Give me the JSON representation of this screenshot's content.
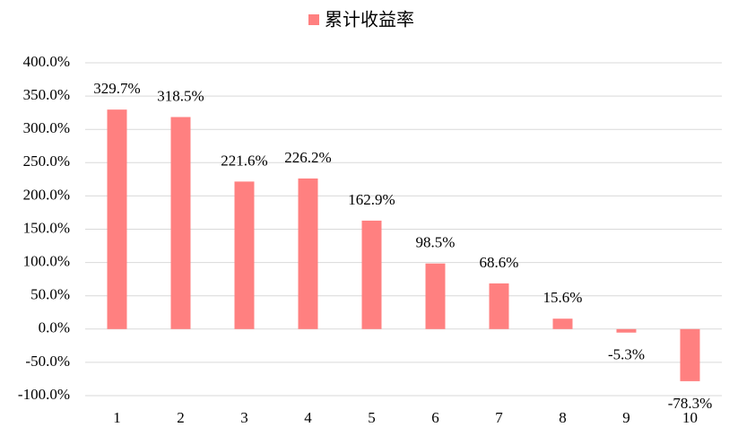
{
  "chart_data": {
    "type": "bar",
    "legend": "累计收益率",
    "categories": [
      "1",
      "2",
      "3",
      "4",
      "5",
      "6",
      "7",
      "8",
      "9",
      "10"
    ],
    "values": [
      329.7,
      318.5,
      221.6,
      226.2,
      162.9,
      98.5,
      68.6,
      15.6,
      -5.3,
      -78.3
    ],
    "value_labels": [
      "329.7%",
      "318.5%",
      "221.6%",
      "226.2%",
      "162.9%",
      "98.5%",
      "68.6%",
      "15.6%",
      "-5.3%",
      "-78.3%"
    ],
    "color": "#ff8080",
    "ylim": [
      -100,
      400
    ],
    "yticks": [
      {
        "value": -100,
        "label": "-100.0%"
      },
      {
        "value": -50,
        "label": "-50.0%"
      },
      {
        "value": 0,
        "label": "0.0%"
      },
      {
        "value": 50,
        "label": "50.0%"
      },
      {
        "value": 100,
        "label": "100.0%"
      },
      {
        "value": 150,
        "label": "150.0%"
      },
      {
        "value": 200,
        "label": "200.0%"
      },
      {
        "value": 250,
        "label": "250.0%"
      },
      {
        "value": 300,
        "label": "300.0%"
      },
      {
        "value": 350,
        "label": "350.0%"
      },
      {
        "value": 400,
        "label": "400.0%"
      }
    ],
    "grid": true,
    "legend_position": "top"
  }
}
